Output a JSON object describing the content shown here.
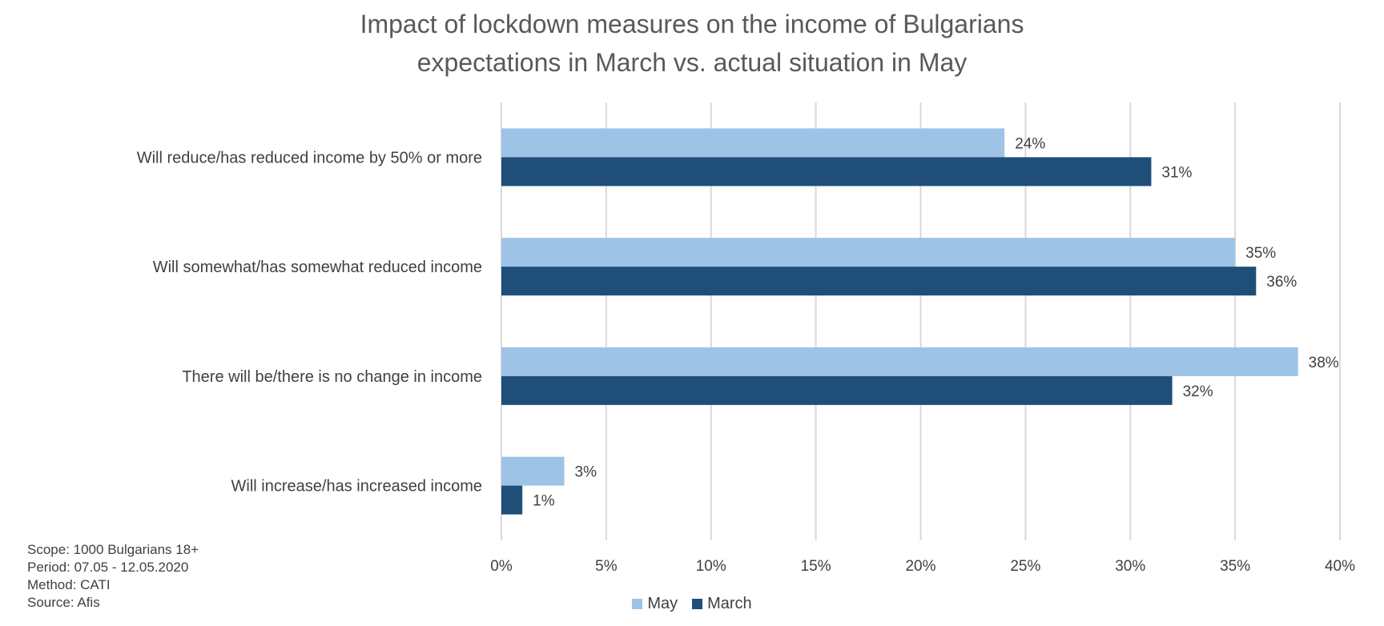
{
  "chart_data": {
    "type": "bar",
    "orientation": "horizontal",
    "title": "Impact of lockdown measures on the income of Bulgarians",
    "subtitle": "expectations in March vs. actual situation in May",
    "categories": [
      "Will reduce/has reduced income by 50% or more",
      "Will somewhat/has somewhat reduced income",
      "There will be/there is no change in income",
      "Will increase/has increased income"
    ],
    "series": [
      {
        "name": "May",
        "color": "#9DC3E6",
        "values": [
          24,
          35,
          38,
          3
        ],
        "labels": [
          "24%",
          "35%",
          "38%",
          "3%"
        ]
      },
      {
        "name": "March",
        "color": "#1F4E79",
        "values": [
          31,
          36,
          32,
          1
        ],
        "labels": [
          "31%",
          "36%",
          "32%",
          "1%"
        ]
      }
    ],
    "xlim": [
      0,
      40
    ],
    "xticks": [
      "0%",
      "5%",
      "10%",
      "15%",
      "20%",
      "25%",
      "30%",
      "35%",
      "40%"
    ],
    "grid": true,
    "legend_position": "bottom"
  },
  "notes": [
    "Scope: 1000 Bulgarians 18+",
    "Period: 07.05 - 12.05.2020",
    "Method: CATI",
    "Source: Afis"
  ]
}
